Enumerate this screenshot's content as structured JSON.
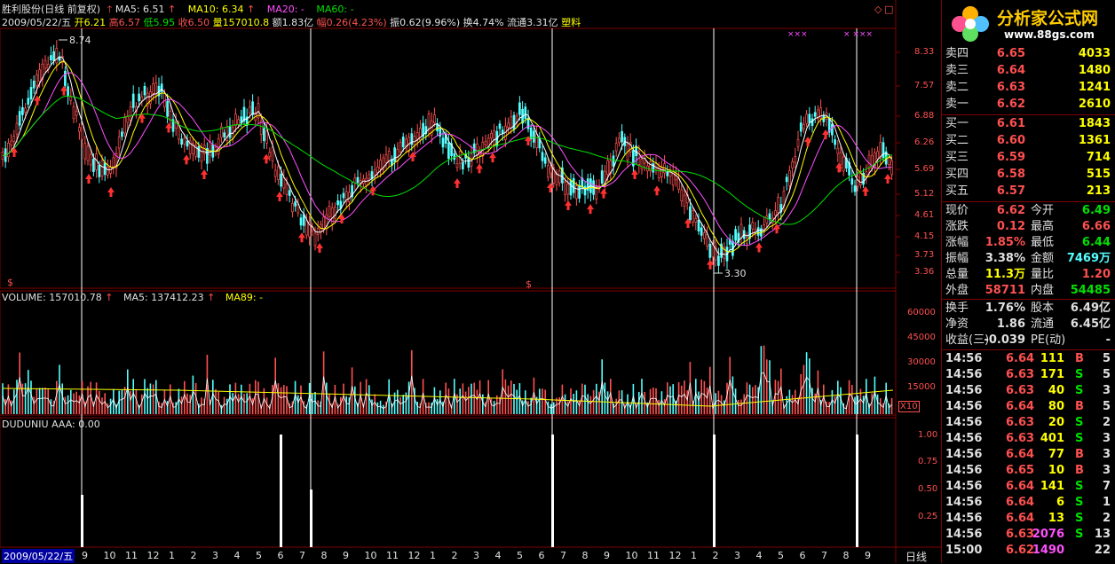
{
  "header": {
    "stock_name": "胜利股份(日线 前复权)",
    "ma5": "MA5: 6.51",
    "ma10": "MA10: 6.34",
    "ma20": "MA20: -",
    "ma60": "MA60: -",
    "date": "2009/05/22/五",
    "open": "开6.21",
    "high": "高6.57",
    "low": "低5.95",
    "close": "收6.50",
    "volume": "量157010.8",
    "amount": "额1.83亿",
    "change": "幅0.26(4.23%)",
    "amplitude": "振0.62(9.96%)",
    "turnover": "换4.74%",
    "float": "流通3.31亿",
    "sector": "塑料"
  },
  "price_axis": [
    "8.33",
    "7.57",
    "6.88",
    "6.26",
    "5.69",
    "5.12",
    "4.61",
    "4.15",
    "3.73",
    "3.36"
  ],
  "annotations": {
    "high_label": "8.74",
    "low_label": "3.30",
    "dollar": "$"
  },
  "volume_panel": {
    "title": "VOLUME: 157010.78",
    "ma5": "MA5: 137412.23",
    "ma89": "MA89: -",
    "axis": [
      "60000",
      "45000",
      "30000",
      "15000"
    ],
    "unit": "X10"
  },
  "indicator_panel": {
    "title": "DUDUNIU AAA: 0.00",
    "axis": [
      "1.00",
      "0.75",
      "0.50",
      "0.25"
    ]
  },
  "bottom_axis": {
    "date": "2009/05/22/五",
    "labels": [
      "9",
      "10",
      "11",
      "12",
      "1",
      "2",
      "3",
      "4",
      "5",
      "6",
      "7",
      "8",
      "9",
      "10",
      "11",
      "12",
      "1",
      "2",
      "3",
      "4",
      "5",
      "6",
      "7",
      "8",
      "9",
      "10",
      "11",
      "12",
      "1",
      "2",
      "3",
      "4",
      "5",
      "6",
      "7",
      "8",
      "9"
    ],
    "period": "日线"
  },
  "logo": {
    "title": "分析家公式网",
    "url": "www.88gs.com"
  },
  "orderbook": {
    "asks": [
      {
        "label": "卖四",
        "price": "6.65",
        "vol": "4033"
      },
      {
        "label": "卖三",
        "price": "6.64",
        "vol": "1480"
      },
      {
        "label": "卖二",
        "price": "6.63",
        "vol": "1241"
      },
      {
        "label": "卖一",
        "price": "6.62",
        "vol": "2610"
      }
    ],
    "bids": [
      {
        "label": "买一",
        "price": "6.61",
        "vol": "1843"
      },
      {
        "label": "买二",
        "price": "6.60",
        "vol": "1361"
      },
      {
        "label": "买三",
        "price": "6.59",
        "vol": "714"
      },
      {
        "label": "买四",
        "price": "6.58",
        "vol": "515"
      },
      {
        "label": "买五",
        "price": "6.57",
        "vol": "213"
      }
    ]
  },
  "quote": [
    {
      "l1": "现价",
      "v1": "6.62",
      "c1": "red",
      "l2": "今开",
      "v2": "6.49",
      "c2": "grn"
    },
    {
      "l1": "涨跌",
      "v1": "0.12",
      "c1": "red",
      "l2": "最高",
      "v2": "6.66",
      "c2": "red"
    },
    {
      "l1": "涨幅",
      "v1": "1.85%",
      "c1": "red",
      "l2": "最低",
      "v2": "6.44",
      "c2": "grn"
    },
    {
      "l1": "振幅",
      "v1": "3.38%",
      "c1": "wht",
      "l2": "金额",
      "v2": "7469万",
      "c2": "cyan"
    },
    {
      "l1": "总量",
      "v1": "11.3万",
      "c1": "yel",
      "l2": "量比",
      "v2": "1.20",
      "c2": "red"
    },
    {
      "l1": "外盘",
      "v1": "58711",
      "c1": "red",
      "l2": "内盘",
      "v2": "54485",
      "c2": "grn"
    },
    {
      "l1": "换手",
      "v1": "1.76%",
      "c1": "wht",
      "l2": "股本",
      "v2": "6.49亿",
      "c2": "wht"
    },
    {
      "l1": "净资",
      "v1": "1.86",
      "c1": "wht",
      "l2": "流通",
      "v2": "6.45亿",
      "c2": "wht"
    },
    {
      "l1": "收益(三)",
      "v1": "-0.039",
      "c1": "wht",
      "l2": "PE(动)",
      "v2": "-",
      "c2": "wht"
    }
  ],
  "ticks": [
    {
      "t": "14:56",
      "p": "6.64",
      "v": "111",
      "s": "B",
      "n": "5"
    },
    {
      "t": "14:56",
      "p": "6.63",
      "v": "171",
      "s": "S",
      "n": "5"
    },
    {
      "t": "14:56",
      "p": "6.63",
      "v": "40",
      "s": "S",
      "n": "3"
    },
    {
      "t": "14:56",
      "p": "6.64",
      "v": "80",
      "s": "B",
      "n": "5"
    },
    {
      "t": "14:56",
      "p": "6.63",
      "v": "20",
      "s": "S",
      "n": "2"
    },
    {
      "t": "14:56",
      "p": "6.63",
      "v": "401",
      "s": "S",
      "n": "3"
    },
    {
      "t": "14:56",
      "p": "6.64",
      "v": "77",
      "s": "B",
      "n": "3"
    },
    {
      "t": "14:56",
      "p": "6.65",
      "v": "10",
      "s": "B",
      "n": "3"
    },
    {
      "t": "14:56",
      "p": "6.64",
      "v": "141",
      "s": "S",
      "n": "7"
    },
    {
      "t": "14:56",
      "p": "6.64",
      "v": "6",
      "s": "S",
      "n": "1"
    },
    {
      "t": "14:56",
      "p": "6.64",
      "v": "13",
      "s": "S",
      "n": "2"
    },
    {
      "t": "14:56",
      "p": "6.63",
      "v": "2076",
      "s": "S",
      "n": "13"
    },
    {
      "t": "15:00",
      "p": "6.62",
      "v": "1490",
      "s": "",
      "n": "22"
    }
  ]
}
